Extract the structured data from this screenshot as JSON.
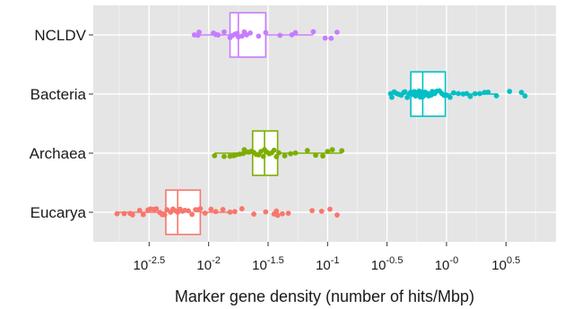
{
  "chart_data": {
    "type": "boxplot",
    "title": "",
    "xlabel": "Marker gene density (number of hits/Mbp)",
    "ylabel": "",
    "x_scale": "log10",
    "xlim": [
      -2.97,
      0.92
    ],
    "x_ticks": [
      {
        "value": -2.5,
        "base": "10",
        "exp": "-2.5"
      },
      {
        "value": -2.0,
        "base": "10",
        "exp": "-2"
      },
      {
        "value": -1.5,
        "base": "10",
        "exp": "-1.5"
      },
      {
        "value": -1.0,
        "base": "10",
        "exp": "-1"
      },
      {
        "value": -0.5,
        "base": "10",
        "exp": "-0.5"
      },
      {
        "value": 0.0,
        "base": "10",
        "exp": "-0"
      },
      {
        "value": 0.5,
        "base": "10",
        "exp": "0.5"
      }
    ],
    "grid": true,
    "legend": "none",
    "categories": [
      "NCLDV",
      "Bacteria",
      "Archaea",
      "Eucarya"
    ],
    "series": [
      {
        "name": "NCLDV",
        "color": "#C77CFF",
        "box": {
          "whisker_low": -2.12,
          "q1": -1.82,
          "median": -1.75,
          "q3": -1.52,
          "whisker_high": -1.12
        },
        "points_log10": [
          -2.12,
          -2.09,
          -2.08,
          -1.96,
          -1.94,
          -1.92,
          -1.87,
          -1.82,
          -1.8,
          -1.78,
          -1.76,
          -1.75,
          -1.72,
          -1.7,
          -1.68,
          -1.65,
          -1.58,
          -1.52,
          -1.4,
          -1.3,
          -1.27,
          -1.12,
          -1.02,
          -0.97,
          -0.92
        ]
      },
      {
        "name": "Bacteria",
        "color": "#00BFC4",
        "box": {
          "whisker_low": -0.47,
          "q1": -0.3,
          "median": -0.2,
          "q3": -0.01,
          "whisker_high": 0.42
        },
        "points_log10": [
          -0.47,
          -0.46,
          -0.44,
          -0.42,
          -0.4,
          -0.38,
          -0.36,
          -0.35,
          -0.33,
          -0.31,
          -0.3,
          -0.29,
          -0.28,
          -0.27,
          -0.26,
          -0.25,
          -0.24,
          -0.23,
          -0.22,
          -0.21,
          -0.2,
          -0.19,
          -0.18,
          -0.17,
          -0.16,
          -0.15,
          -0.13,
          -0.12,
          -0.11,
          -0.1,
          -0.08,
          -0.06,
          -0.04,
          -0.02,
          0.0,
          0.03,
          0.06,
          0.1,
          0.14,
          0.17,
          0.2,
          0.24,
          0.28,
          0.32,
          0.35,
          0.42,
          0.53,
          0.63,
          0.66
        ]
      },
      {
        "name": "Archaea",
        "color": "#7CAE00",
        "box": {
          "whisker_low": -1.95,
          "q1": -1.63,
          "median": -1.53,
          "q3": -1.42,
          "whisker_high": -0.88
        },
        "points_log10": [
          -1.95,
          -1.87,
          -1.82,
          -1.79,
          -1.77,
          -1.74,
          -1.71,
          -1.7,
          -1.68,
          -1.66,
          -1.64,
          -1.62,
          -1.6,
          -1.58,
          -1.56,
          -1.54,
          -1.53,
          -1.51,
          -1.49,
          -1.47,
          -1.45,
          -1.43,
          -1.41,
          -1.36,
          -1.31,
          -1.27,
          -1.17,
          -1.1,
          -1.04,
          -1.0,
          -0.96,
          -0.88
        ]
      },
      {
        "name": "Eucarya",
        "color": "#F8766D",
        "box": {
          "whisker_low": -2.77,
          "q1": -2.36,
          "median": -2.26,
          "q3": -2.07,
          "whisker_high": -1.78
        },
        "points_log10": [
          -2.77,
          -2.71,
          -2.66,
          -2.64,
          -2.58,
          -2.55,
          -2.51,
          -2.49,
          -2.46,
          -2.44,
          -2.41,
          -2.39,
          -2.37,
          -2.35,
          -2.32,
          -2.3,
          -2.28,
          -2.26,
          -2.24,
          -2.22,
          -2.2,
          -2.17,
          -2.14,
          -2.11,
          -2.09,
          -2.07,
          -2.03,
          -1.98,
          -1.94,
          -1.88,
          -1.82,
          -1.78,
          -1.72,
          -1.62,
          -1.52,
          -1.45,
          -1.43,
          -1.42,
          -1.38,
          -1.33,
          -1.13,
          -1.05,
          -0.98,
          -0.92
        ]
      }
    ]
  }
}
